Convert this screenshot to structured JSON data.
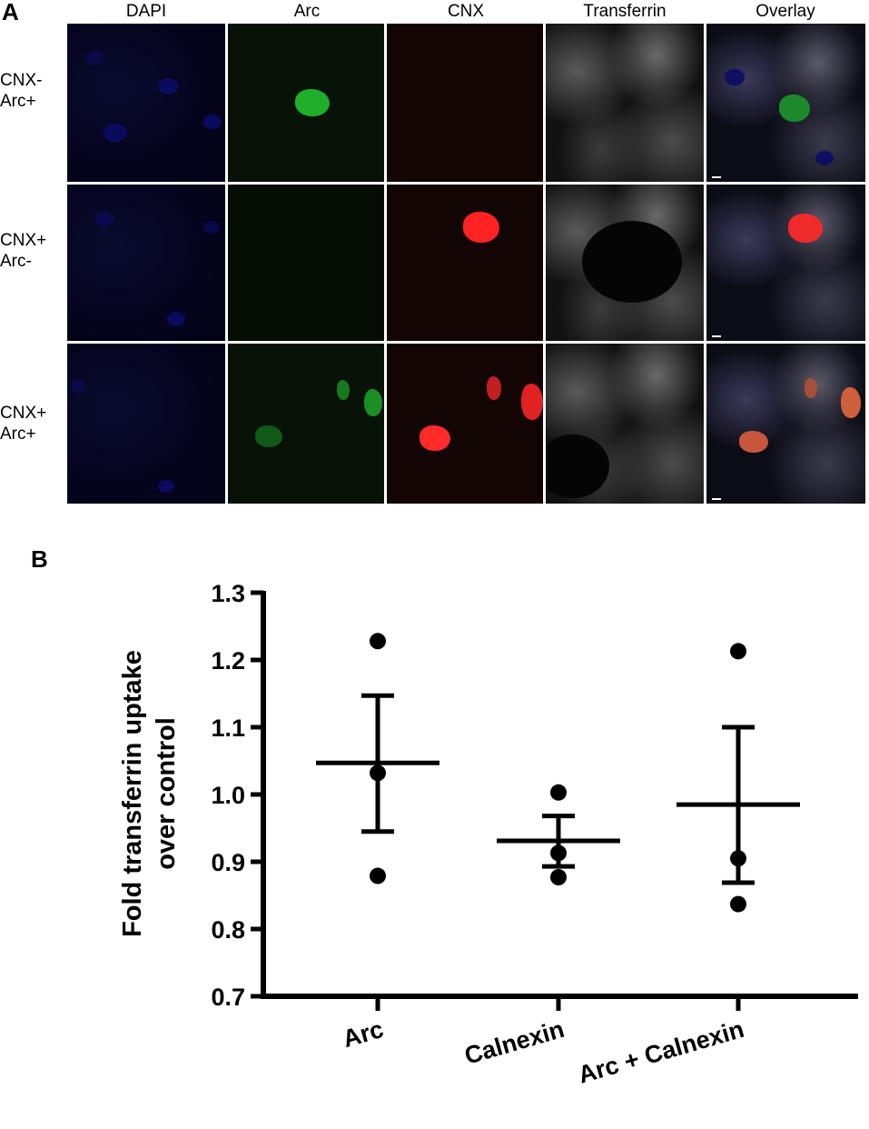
{
  "panel_a": {
    "letter": "A",
    "columns": [
      "DAPI",
      "Arc",
      "CNX",
      "Transferrin",
      "Overlay"
    ],
    "rows": [
      {
        "line1": "CNX-",
        "line2": "Arc+"
      },
      {
        "line1": "CNX+",
        "line2": "Arc-"
      },
      {
        "line1": "CNX+",
        "line2": "Arc+"
      }
    ]
  },
  "panel_b": {
    "letter": "B"
  },
  "chart_data": {
    "type": "scatter",
    "title": "",
    "xlabel": "",
    "ylabel_line1": "Fold transferrin uptake",
    "ylabel_line2": "over control",
    "ylim": [
      0.7,
      1.3
    ],
    "yticks": [
      "0.7",
      "0.8",
      "0.9",
      "1.0",
      "1.1",
      "1.2",
      "1.3"
    ],
    "categories": [
      "Arc",
      "Calnexin",
      "Arc + Calnexin"
    ],
    "groups": [
      {
        "name": "Arc",
        "points": [
          1.228,
          1.032,
          0.879
        ],
        "mean": 1.047,
        "sem_upper": 1.147,
        "sem_lower": 0.945
      },
      {
        "name": "Calnexin",
        "points": [
          1.003,
          0.913,
          0.877
        ],
        "mean": 0.931,
        "sem_upper": 0.968,
        "sem_lower": 0.893
      },
      {
        "name": "Arc + Calnexin",
        "points": [
          1.213,
          0.905,
          0.837
        ],
        "mean": 0.985,
        "sem_upper": 1.1,
        "sem_lower": 0.869
      }
    ],
    "grid": false,
    "marker_color": "#000000"
  }
}
